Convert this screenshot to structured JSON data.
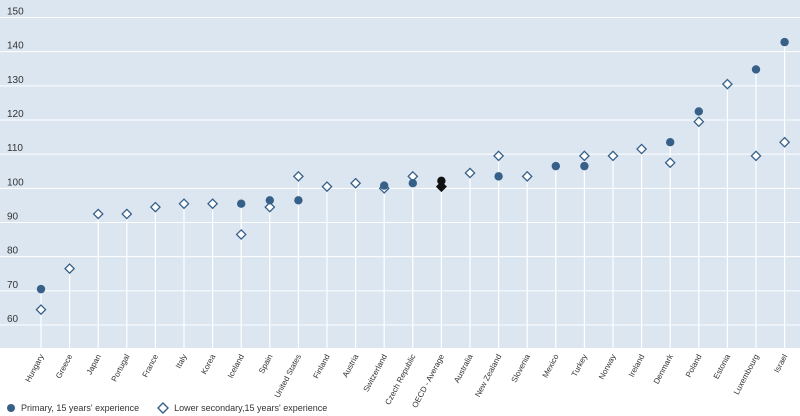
{
  "chart_data": {
    "type": "scatter",
    "categories": [
      "Hungary",
      "Greece",
      "Japan",
      "Portugal",
      "France",
      "Italy",
      "Korea",
      "Iceland",
      "Spain",
      "United States",
      "Finland",
      "Austria",
      "Switzerland",
      "Czech Republic",
      "OECD - Average",
      "Australia",
      "New Zealand",
      "Slovenia",
      "Mexico",
      "Turkey",
      "Norway",
      "Ireland",
      "Denmark",
      "Poland",
      "Estonia",
      "Luxembourg",
      "Israel"
    ],
    "series": [
      {
        "name": "Primary, 15 years' experience",
        "marker": "circle",
        "color": "#376088",
        "values": [
          70.5,
          null,
          null,
          null,
          null,
          null,
          null,
          95.5,
          96.5,
          96.5,
          null,
          null,
          100.8,
          101.5,
          102.2,
          null,
          103.5,
          null,
          106.5,
          106.5,
          null,
          null,
          113.5,
          122.5,
          null,
          134.8,
          142.8
        ]
      },
      {
        "name": "Lower secondary,15 years' experience",
        "marker": "diamond",
        "color": "#376088",
        "values": [
          64.5,
          76.5,
          92.5,
          92.5,
          94.5,
          95.5,
          95.5,
          86.5,
          94.5,
          103.5,
          100.5,
          101.5,
          100.0,
          103.5,
          100.5,
          104.5,
          109.5,
          103.5,
          null,
          109.5,
          109.5,
          111.5,
          107.5,
          119.5,
          130.5,
          109.5,
          113.5
        ]
      }
    ],
    "highlight_category": "OECD - Average",
    "highlight_color": "#111111",
    "ylim": [
      57,
      152
    ],
    "yticks": [
      60,
      70,
      80,
      90,
      100,
      110,
      120,
      130,
      140,
      150
    ],
    "grid": true,
    "plot_background": "#dbe6f1",
    "legend_position": "bottom-left"
  }
}
